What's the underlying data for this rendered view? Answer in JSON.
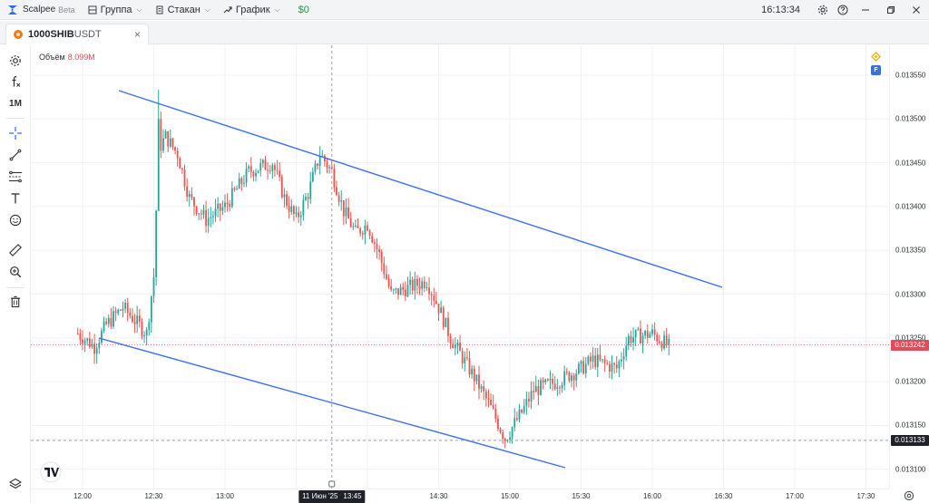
{
  "app": {
    "name": "Scalpee",
    "badge": "Beta",
    "menu": {
      "group": "Группа",
      "orderbook": "Стакан",
      "chart": "График",
      "balance": "$0"
    },
    "clock": "16:13:34"
  },
  "tab": {
    "symbol": "1000SHIB",
    "quote": "USDT",
    "close_glyph": "×"
  },
  "toolbar": {
    "interval": "1M"
  },
  "chart": {
    "volume_label": "Объём",
    "volume_value": "8.099M",
    "exchange_badge": "F",
    "price_ticks": [
      "0.013550",
      "0.013500",
      "0.013450",
      "0.013400",
      "0.013350",
      "0.013300",
      "0.013250",
      "0.013200",
      "0.013150",
      "0.013100"
    ],
    "price_tick_values": [
      0.01355,
      0.0135,
      0.01345,
      0.0134,
      0.01335,
      0.0133,
      0.01325,
      0.0132,
      0.01315,
      0.0131
    ],
    "current_price": "0.013242",
    "current_price_value": 0.013242,
    "level_price": "0.013133",
    "level_price_value": 0.013133,
    "time_ticks": [
      "12:00",
      "12:30",
      "13:00",
      "13:30",
      "14:00",
      "14:30",
      "15:00",
      "15:30",
      "16:00",
      "16:30",
      "17:00",
      "17:30"
    ],
    "crosshair_time": "11 Июн '25",
    "crosshair_clock": "13:45",
    "colors": {
      "up": "#26a69a",
      "down": "#ef5350",
      "channel": "#3d6ff2",
      "current_price": "#e24b5a",
      "level_tag": "#1f2329"
    }
  }
}
